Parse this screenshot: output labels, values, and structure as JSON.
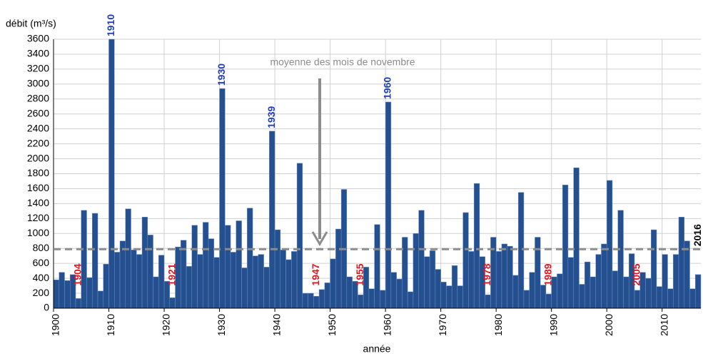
{
  "chart_data": {
    "type": "bar",
    "y_label": "débit (m³/s)",
    "x_label": "année",
    "x": [
      1900,
      1901,
      1902,
      1903,
      1904,
      1905,
      1906,
      1907,
      1908,
      1909,
      1910,
      1911,
      1912,
      1913,
      1914,
      1915,
      1916,
      1917,
      1918,
      1919,
      1920,
      1921,
      1922,
      1923,
      1924,
      1925,
      1926,
      1927,
      1928,
      1929,
      1930,
      1931,
      1932,
      1933,
      1934,
      1935,
      1936,
      1937,
      1938,
      1939,
      1940,
      1941,
      1942,
      1943,
      1944,
      1945,
      1946,
      1947,
      1948,
      1949,
      1950,
      1951,
      1952,
      1953,
      1954,
      1955,
      1956,
      1957,
      1958,
      1959,
      1960,
      1961,
      1962,
      1963,
      1964,
      1965,
      1966,
      1967,
      1968,
      1969,
      1970,
      1971,
      1972,
      1973,
      1974,
      1975,
      1976,
      1977,
      1978,
      1979,
      1980,
      1981,
      1982,
      1983,
      1984,
      1985,
      1986,
      1987,
      1988,
      1989,
      1990,
      1991,
      1992,
      1993,
      1994,
      1995,
      1996,
      1997,
      1998,
      1999,
      2000,
      2001,
      2002,
      2003,
      2004,
      2005,
      2006,
      2007,
      2008,
      2009,
      2010,
      2011,
      2012,
      2013,
      2014,
      2015,
      2016
    ],
    "values": [
      380,
      480,
      370,
      450,
      130,
      1310,
      410,
      1270,
      230,
      590,
      3600,
      750,
      900,
      1330,
      780,
      720,
      1220,
      980,
      420,
      710,
      360,
      140,
      820,
      910,
      560,
      1110,
      720,
      1150,
      930,
      680,
      2940,
      1110,
      750,
      1170,
      540,
      1340,
      700,
      720,
      550,
      2370,
      1050,
      780,
      650,
      760,
      1940,
      200,
      200,
      160,
      250,
      340,
      660,
      1060,
      1590,
      420,
      360,
      180,
      550,
      260,
      1120,
      240,
      2760,
      480,
      390,
      950,
      220,
      1000,
      1310,
      690,
      770,
      520,
      350,
      300,
      570,
      300,
      1280,
      760,
      1670,
      690,
      180,
      950,
      760,
      860,
      830,
      440,
      1550,
      240,
      480,
      950,
      310,
      190,
      420,
      460,
      1650,
      680,
      1880,
      320,
      620,
      420,
      720,
      860,
      1710,
      500,
      1310,
      420,
      730,
      240,
      480,
      400,
      1050,
      290,
      720,
      260,
      720,
      1220,
      900,
      260,
      450
    ],
    "color": "#24508f",
    "xlim": [
      1900,
      2017
    ],
    "xticks": [
      1900,
      1910,
      1920,
      1930,
      1940,
      1950,
      1960,
      1970,
      1980,
      1990,
      2000,
      2010
    ],
    "ylim": [
      0,
      3600
    ],
    "yticks": [
      0,
      200,
      400,
      600,
      800,
      1000,
      1200,
      1400,
      1600,
      1800,
      2000,
      2200,
      2400,
      2600,
      2800,
      3000,
      3200,
      3400,
      3600
    ],
    "grid": true,
    "reference_line": {
      "value": 790,
      "label": "moyenne des mois de novembre",
      "color": "#8c8c8c"
    },
    "annotations": [
      {
        "text": "1910",
        "color": "#1f3fbf",
        "position": "above"
      },
      {
        "text": "1930",
        "color": "#1f3fbf",
        "position": "above"
      },
      {
        "text": "1939",
        "color": "#1f3fbf",
        "position": "above"
      },
      {
        "text": "1960",
        "color": "#1f3fbf",
        "position": "above"
      },
      {
        "text": "1904",
        "color": "#e8141c",
        "position": "low"
      },
      {
        "text": "1921",
        "color": "#e8141c",
        "position": "low"
      },
      {
        "text": "1947",
        "color": "#e8141c",
        "position": "low"
      },
      {
        "text": "1955",
        "color": "#e8141c",
        "position": "low"
      },
      {
        "text": "1978",
        "color": "#e8141c",
        "position": "low"
      },
      {
        "text": "1989",
        "color": "#e8141c",
        "position": "low"
      },
      {
        "text": "2005",
        "color": "#e8141c",
        "position": "low"
      },
      {
        "text": "2016",
        "color": "#000000",
        "position": "mean"
      }
    ]
  }
}
